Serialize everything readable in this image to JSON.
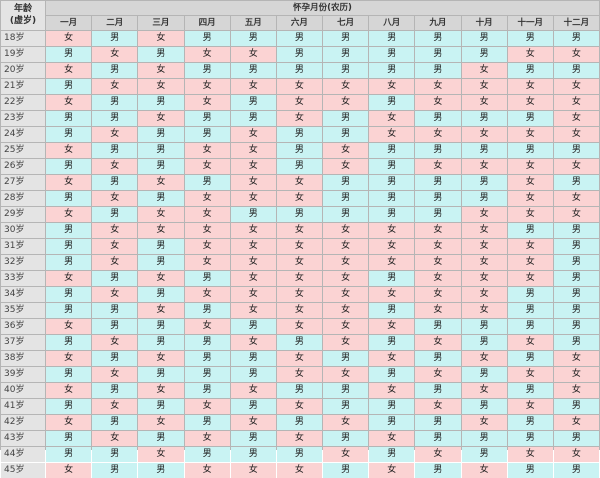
{
  "corner": {
    "line1": "年龄",
    "line2": "(虚岁)"
  },
  "title": "怀孕月份(农历)",
  "months": [
    "一月",
    "二月",
    "三月",
    "四月",
    "五月",
    "六月",
    "七月",
    "八月",
    "九月",
    "十月",
    "十一月",
    "十二月"
  ],
  "colors": {
    "boy": "#c9f3f3",
    "girl": "#fbd3d3",
    "header": "#d6d6d6",
    "age": "#e4e4e4",
    "border": "#b5b5b5"
  },
  "rows": [
    {
      "age": "18岁",
      "cells": [
        "女",
        "男",
        "女",
        "男",
        "男",
        "男",
        "男",
        "男",
        "男",
        "男",
        "男",
        "男"
      ]
    },
    {
      "age": "19岁",
      "cells": [
        "男",
        "女",
        "男",
        "女",
        "女",
        "男",
        "男",
        "男",
        "男",
        "男",
        "女",
        "女"
      ]
    },
    {
      "age": "20岁",
      "cells": [
        "女",
        "男",
        "女",
        "男",
        "男",
        "男",
        "男",
        "男",
        "男",
        "女",
        "男",
        "男"
      ]
    },
    {
      "age": "21岁",
      "cells": [
        "男",
        "女",
        "女",
        "女",
        "女",
        "女",
        "女",
        "女",
        "女",
        "女",
        "女",
        "女"
      ]
    },
    {
      "age": "22岁",
      "cells": [
        "女",
        "男",
        "男",
        "女",
        "男",
        "女",
        "女",
        "男",
        "女",
        "女",
        "女",
        "女"
      ]
    },
    {
      "age": "23岁",
      "cells": [
        "男",
        "男",
        "女",
        "男",
        "男",
        "女",
        "男",
        "女",
        "男",
        "男",
        "男",
        "女"
      ]
    },
    {
      "age": "24岁",
      "cells": [
        "男",
        "女",
        "男",
        "男",
        "女",
        "男",
        "男",
        "女",
        "女",
        "女",
        "女",
        "女"
      ]
    },
    {
      "age": "25岁",
      "cells": [
        "女",
        "男",
        "男",
        "女",
        "女",
        "男",
        "女",
        "男",
        "男",
        "男",
        "男",
        "男"
      ]
    },
    {
      "age": "26岁",
      "cells": [
        "男",
        "女",
        "男",
        "女",
        "女",
        "男",
        "女",
        "男",
        "女",
        "女",
        "女",
        "女"
      ]
    },
    {
      "age": "27岁",
      "cells": [
        "女",
        "男",
        "女",
        "男",
        "女",
        "女",
        "男",
        "男",
        "男",
        "男",
        "女",
        "男"
      ]
    },
    {
      "age": "28岁",
      "cells": [
        "男",
        "女",
        "男",
        "女",
        "女",
        "女",
        "男",
        "男",
        "男",
        "男",
        "女",
        "女"
      ]
    },
    {
      "age": "29岁",
      "cells": [
        "女",
        "男",
        "女",
        "女",
        "男",
        "男",
        "男",
        "男",
        "男",
        "女",
        "女",
        "女"
      ]
    },
    {
      "age": "30岁",
      "cells": [
        "男",
        "女",
        "女",
        "女",
        "女",
        "女",
        "女",
        "女",
        "女",
        "女",
        "男",
        "男"
      ]
    },
    {
      "age": "31岁",
      "cells": [
        "男",
        "女",
        "男",
        "女",
        "女",
        "女",
        "女",
        "女",
        "女",
        "女",
        "女",
        "男"
      ]
    },
    {
      "age": "32岁",
      "cells": [
        "男",
        "女",
        "男",
        "女",
        "女",
        "女",
        "女",
        "女",
        "女",
        "女",
        "女",
        "男"
      ]
    },
    {
      "age": "33岁",
      "cells": [
        "女",
        "男",
        "女",
        "男",
        "女",
        "女",
        "女",
        "男",
        "女",
        "女",
        "女",
        "男"
      ]
    },
    {
      "age": "34岁",
      "cells": [
        "男",
        "女",
        "男",
        "女",
        "女",
        "女",
        "女",
        "女",
        "女",
        "女",
        "男",
        "男"
      ]
    },
    {
      "age": "35岁",
      "cells": [
        "男",
        "男",
        "女",
        "男",
        "女",
        "女",
        "女",
        "男",
        "女",
        "女",
        "男",
        "男"
      ]
    },
    {
      "age": "36岁",
      "cells": [
        "女",
        "男",
        "男",
        "女",
        "男",
        "女",
        "女",
        "女",
        "男",
        "男",
        "男",
        "男"
      ]
    },
    {
      "age": "37岁",
      "cells": [
        "男",
        "女",
        "男",
        "男",
        "女",
        "男",
        "女",
        "男",
        "女",
        "男",
        "女",
        "男"
      ]
    },
    {
      "age": "38岁",
      "cells": [
        "女",
        "男",
        "女",
        "男",
        "男",
        "女",
        "男",
        "女",
        "男",
        "女",
        "男",
        "女"
      ]
    },
    {
      "age": "39岁",
      "cells": [
        "男",
        "女",
        "男",
        "男",
        "男",
        "女",
        "女",
        "男",
        "女",
        "男",
        "女",
        "女"
      ]
    },
    {
      "age": "40岁",
      "cells": [
        "女",
        "男",
        "女",
        "男",
        "女",
        "男",
        "男",
        "女",
        "男",
        "女",
        "男",
        "女"
      ]
    },
    {
      "age": "41岁",
      "cells": [
        "男",
        "女",
        "男",
        "女",
        "男",
        "女",
        "男",
        "男",
        "女",
        "男",
        "女",
        "男"
      ]
    },
    {
      "age": "42岁",
      "cells": [
        "女",
        "男",
        "女",
        "男",
        "女",
        "男",
        "女",
        "男",
        "男",
        "女",
        "男",
        "女"
      ]
    },
    {
      "age": "43岁",
      "cells": [
        "男",
        "女",
        "男",
        "女",
        "男",
        "女",
        "男",
        "女",
        "男",
        "男",
        "男",
        "男"
      ]
    },
    {
      "age": "44岁",
      "cells": [
        "男",
        "男",
        "女",
        "男",
        "男",
        "男",
        "女",
        "男",
        "女",
        "男",
        "女",
        "女"
      ]
    },
    {
      "age": "45岁",
      "cells": [
        "女",
        "男",
        "男",
        "女",
        "女",
        "女",
        "男",
        "女",
        "男",
        "女",
        "男",
        "男"
      ]
    }
  ]
}
